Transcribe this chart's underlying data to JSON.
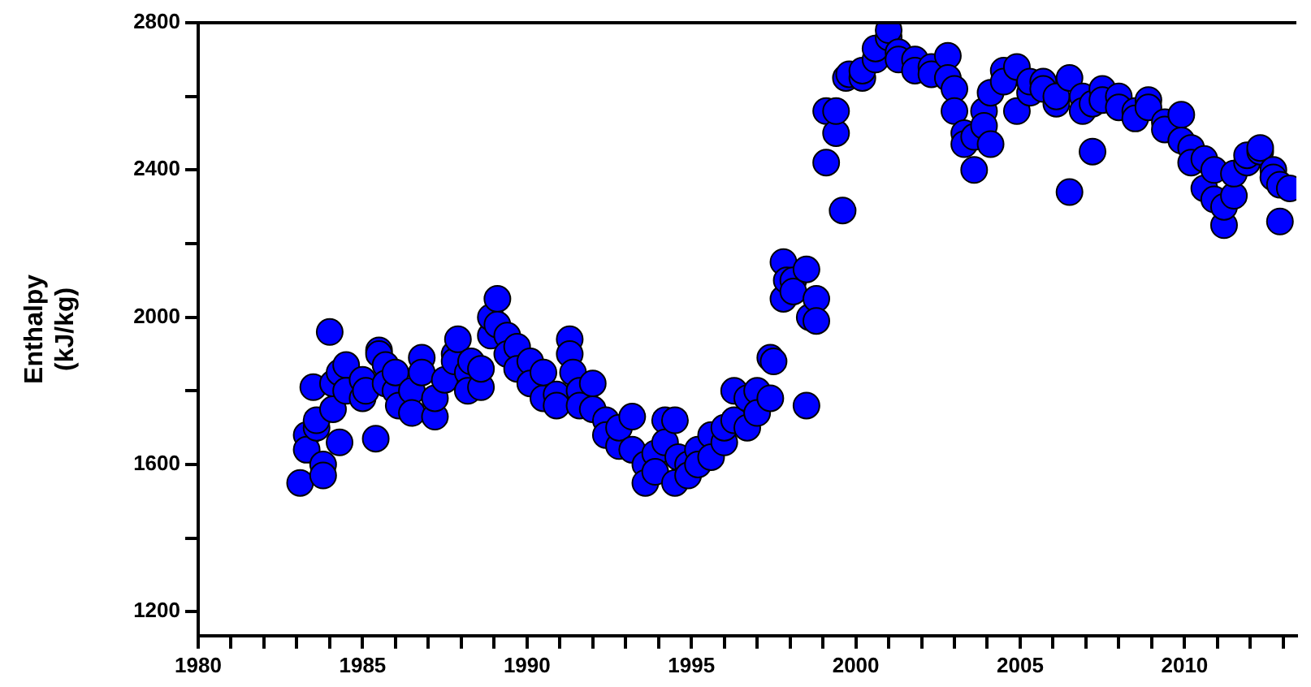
{
  "chart_data": {
    "type": "scatter",
    "ylabel": "Enthalpy\n(kJ/kg)",
    "marker": "circle",
    "grid": false,
    "legend": false,
    "xlim": [
      1980,
      2013.4
    ],
    "ylim": [
      1135,
      2800
    ],
    "xticks": [
      1980,
      {
        "value": 1981,
        "label": null
      },
      {
        "value": 1982,
        "label": null
      },
      {
        "value": 1983,
        "label": null
      },
      {
        "value": 1984,
        "label": null
      },
      1985,
      {
        "value": 1986,
        "label": null
      },
      {
        "value": 1987,
        "label": null
      },
      {
        "value": 1988,
        "label": null
      },
      {
        "value": 1989,
        "label": null
      },
      1990,
      {
        "value": 1991,
        "label": null
      },
      {
        "value": 1992,
        "label": null
      },
      {
        "value": 1993,
        "label": null
      },
      {
        "value": 1994,
        "label": null
      },
      1995,
      {
        "value": 1996,
        "label": null
      },
      {
        "value": 1997,
        "label": null
      },
      {
        "value": 1998,
        "label": null
      },
      {
        "value": 1999,
        "label": null
      },
      2000,
      {
        "value": 2001,
        "label": null
      },
      {
        "value": 2002,
        "label": null
      },
      {
        "value": 2003,
        "label": null
      },
      {
        "value": 2004,
        "label": null
      },
      2005,
      {
        "value": 2006,
        "label": null
      },
      {
        "value": 2007,
        "label": null
      },
      {
        "value": 2008,
        "label": null
      },
      {
        "value": 2009,
        "label": null
      },
      2010,
      {
        "value": 2011,
        "label": null
      },
      {
        "value": 2012,
        "label": null
      },
      {
        "value": 2013,
        "label": null
      }
    ],
    "yticks": [
      1200,
      {
        "value": 1400,
        "label": null
      },
      1600,
      {
        "value": 1800,
        "label": null
      },
      2000,
      {
        "value": 2200,
        "label": null
      },
      2400,
      {
        "value": 2600,
        "label": null
      },
      2800
    ],
    "series": [
      {
        "color": "#0000ff",
        "x": [
          1983.1,
          1983.3,
          1983.3,
          1983.5,
          1983.6,
          1983.6,
          1983.8,
          1983.8,
          1984.0,
          1984.1,
          1984.1,
          1984.3,
          1984.3,
          1984.5,
          1984.5,
          1985.0,
          1985.0,
          1985.1,
          1985.4,
          1985.5,
          1985.5,
          1985.7,
          1985.7,
          1986.0,
          1986.0,
          1986.1,
          1986.5,
          1986.5,
          1986.8,
          1986.8,
          1987.2,
          1987.2,
          1987.5,
          1987.8,
          1987.8,
          1987.9,
          1988.2,
          1988.2,
          1988.3,
          1988.6,
          1988.6,
          1988.9,
          1988.9,
          1989.1,
          1989.1,
          1989.4,
          1989.4,
          1989.7,
          1989.7,
          1990.1,
          1990.1,
          1990.5,
          1990.5,
          1990.9,
          1990.9,
          1991.3,
          1991.3,
          1991.4,
          1991.6,
          1991.6,
          1992.0,
          1992.0,
          1992.4,
          1992.4,
          1992.8,
          1992.8,
          1993.2,
          1993.2,
          1993.6,
          1993.6,
          1993.9,
          1993.9,
          1994.2,
          1994.2,
          1994.5,
          1994.5,
          1994.6,
          1994.9,
          1994.9,
          1995.2,
          1995.2,
          1995.6,
          1995.6,
          1996.0,
          1996.0,
          1996.3,
          1996.3,
          1996.7,
          1996.7,
          1997.0,
          1997.0,
          1997.4,
          1997.4,
          1997.5,
          1997.8,
          1997.8,
          1997.9,
          1998.1,
          1998.1,
          1998.5,
          1998.5,
          1998.6,
          1998.8,
          1998.8,
          1999.1,
          1999.1,
          1999.4,
          1999.4,
          1999.6,
          1999.7,
          1999.8,
          2000.2,
          2000.2,
          2000.6,
          2000.6,
          2001.0,
          2001.0,
          2001.3,
          2001.3,
          2001.8,
          2001.8,
          2002.3,
          2002.3,
          2002.8,
          2002.8,
          2003.0,
          2003.0,
          2003.3,
          2003.3,
          2003.6,
          2003.6,
          2003.9,
          2003.9,
          2004.1,
          2004.1,
          2004.5,
          2004.5,
          2004.9,
          2004.9,
          2005.3,
          2005.3,
          2005.7,
          2005.7,
          2006.1,
          2006.1,
          2006.5,
          2006.5,
          2006.9,
          2006.9,
          2007.2,
          2007.2,
          2007.5,
          2007.5,
          2008.0,
          2008.0,
          2008.5,
          2008.5,
          2008.9,
          2008.9,
          2009.4,
          2009.4,
          2009.9,
          2009.9,
          2010.2,
          2010.2,
          2010.6,
          2010.6,
          2010.9,
          2010.9,
          2011.2,
          2011.2,
          2011.5,
          2011.5,
          2011.9,
          2011.9,
          2012.3,
          2012.3,
          2012.7,
          2012.7,
          2012.9,
          2012.9,
          2013.2
        ],
        "values": [
          1550,
          1680,
          1640,
          1810,
          1700,
          1720,
          1600,
          1570,
          1960,
          1820,
          1750,
          1660,
          1850,
          1870,
          1800,
          1780,
          1830,
          1800,
          1670,
          1910,
          1900,
          1870,
          1820,
          1800,
          1850,
          1760,
          1800,
          1740,
          1890,
          1850,
          1730,
          1780,
          1830,
          1900,
          1880,
          1940,
          1850,
          1800,
          1880,
          1810,
          1860,
          1950,
          2000,
          2050,
          1980,
          1950,
          1900,
          1920,
          1860,
          1880,
          1820,
          1780,
          1850,
          1790,
          1760,
          1940,
          1900,
          1850,
          1800,
          1760,
          1820,
          1750,
          1720,
          1680,
          1650,
          1700,
          1730,
          1640,
          1600,
          1550,
          1630,
          1580,
          1720,
          1660,
          1720,
          1550,
          1620,
          1600,
          1570,
          1640,
          1600,
          1680,
          1620,
          1660,
          1700,
          1800,
          1720,
          1780,
          1700,
          1800,
          1740,
          1890,
          1780,
          1880,
          2050,
          2150,
          2100,
          2100,
          2070,
          1760,
          2130,
          2000,
          2050,
          1990,
          2420,
          2560,
          2500,
          2560,
          2290,
          2650,
          2660,
          2650,
          2670,
          2700,
          2730,
          2760,
          2780,
          2720,
          2700,
          2700,
          2670,
          2680,
          2660,
          2710,
          2650,
          2620,
          2560,
          2500,
          2470,
          2490,
          2400,
          2560,
          2520,
          2470,
          2610,
          2670,
          2640,
          2680,
          2560,
          2610,
          2640,
          2640,
          2620,
          2580,
          2600,
          2650,
          2340,
          2600,
          2560,
          2580,
          2450,
          2620,
          2590,
          2600,
          2570,
          2560,
          2540,
          2590,
          2570,
          2530,
          2510,
          2550,
          2480,
          2460,
          2420,
          2430,
          2350,
          2320,
          2400,
          2250,
          2300,
          2330,
          2390,
          2420,
          2440,
          2450,
          2460,
          2400,
          2380,
          2260,
          2360,
          2350
        ]
      }
    ]
  }
}
